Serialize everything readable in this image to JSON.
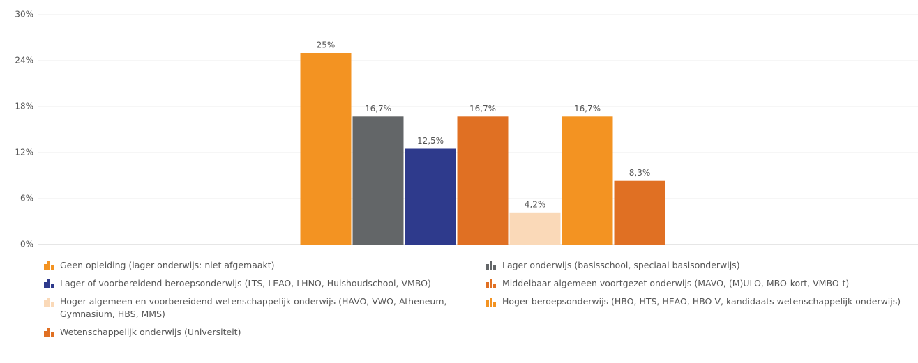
{
  "chart_data": {
    "type": "bar",
    "series": [
      {
        "name": "Geen opleiding (lager onderwijs: niet afgemaakt)",
        "color": "#f39322",
        "values": [
          25
        ],
        "value_labels": [
          "25%"
        ]
      },
      {
        "name": "Lager onderwijs (basisschool, speciaal basisonderwijs)",
        "color": "#636668",
        "values": [
          16.7
        ],
        "value_labels": [
          "16,7%"
        ]
      },
      {
        "name": "Lager of voorbereidend beroepsonderwijs (LTS, LEAO, LHNO, Huishoudschool, VMBO)",
        "color": "#2e3a8c",
        "values": [
          12.5
        ],
        "value_labels": [
          "12,5%"
        ]
      },
      {
        "name": "Middelbaar algemeen voortgezet onderwijs (MAVO, (M)ULO, MBO-kort, VMBO-t)",
        "color": "#e07023",
        "values": [
          16.7
        ],
        "value_labels": [
          "16,7%"
        ]
      },
      {
        "name": "Hoger algemeen en voorbereidend wetenschappelijk onderwijs (HAVO, VWO, Atheneum, Gymnasium, HBS, MMS)",
        "color": "#fad9b8",
        "values": [
          4.2
        ],
        "value_labels": [
          "4,2%"
        ]
      },
      {
        "name": "Hoger beroepsonderwijs (HBO, HTS, HEAO, HBO-V, kandidaats wetenschappelijk onderwijs)",
        "color": "#f39322",
        "values": [
          16.7
        ],
        "value_labels": [
          "16,7%"
        ]
      },
      {
        "name": "Wetenschappelijk onderwijs (Universiteit)",
        "color": "#e07023",
        "values": [
          8.3
        ],
        "value_labels": [
          "8,3%"
        ]
      }
    ],
    "ylim": [
      0,
      30
    ],
    "yticks": [
      {
        "value": 0,
        "label": "0%"
      },
      {
        "value": 6,
        "label": "6%"
      },
      {
        "value": 12,
        "label": "12%"
      },
      {
        "value": 18,
        "label": "18%"
      },
      {
        "value": 24,
        "label": "24%"
      },
      {
        "value": 30,
        "label": "30%"
      }
    ],
    "grid": true
  }
}
